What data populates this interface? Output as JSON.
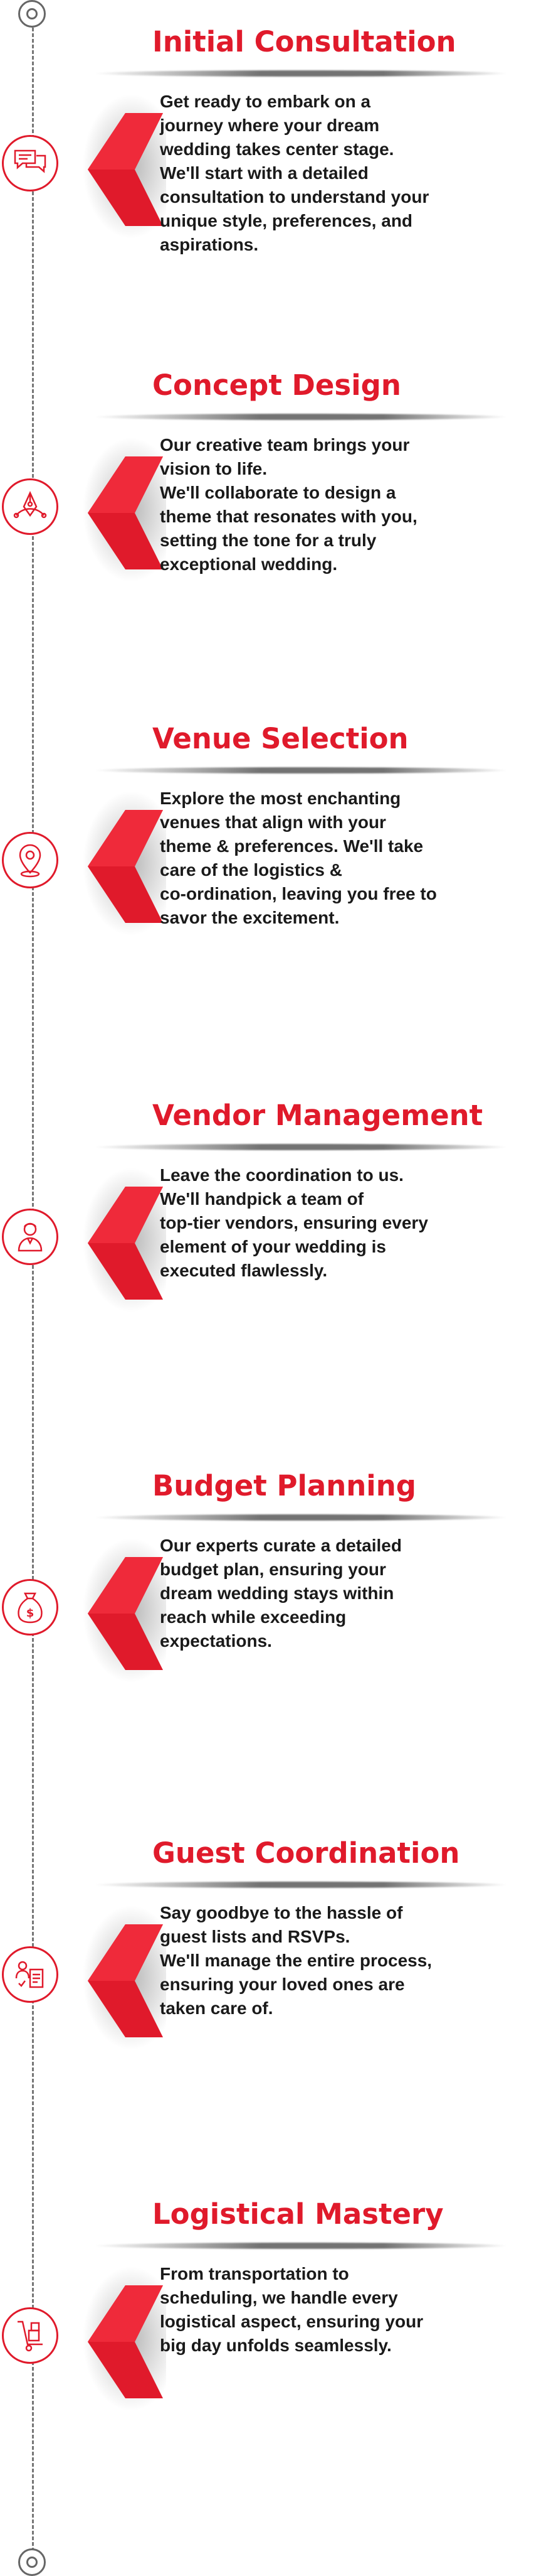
{
  "steps": [
    {
      "title": "Initial Consultation",
      "icon": "chat-icon",
      "body": "Get ready to embark on a\njourney where your dream\nwedding takes center stage.\nWe'll start with a detailed\nconsultation to understand your\nunique style, preferences, and\naspirations."
    },
    {
      "title": "Concept Design",
      "icon": "design-pen-icon",
      "body": "Our creative team brings your\nvision to life.\nWe'll collaborate to design a\ntheme that resonates with you,\nsetting the tone for a truly\nexceptional wedding."
    },
    {
      "title": "Venue Selection",
      "icon": "location-pin-icon",
      "body": "Explore the most enchanting\nvenues that align with your\ntheme & preferences. We'll take\ncare of the logistics &\nco-ordination, leaving you free to\nsavor the excitement."
    },
    {
      "title": "Vendor Management",
      "icon": "vendor-person-icon",
      "body": "Leave the coordination to us.\nWe'll handpick a team of\ntop-tier vendors, ensuring every\nelement of your wedding is\nexecuted flawlessly."
    },
    {
      "title": "Budget Planning",
      "icon": "money-bag-icon",
      "body": "Our experts curate a detailed\nbudget plan, ensuring your\ndream wedding stays within\nreach while exceeding\nexpectations."
    },
    {
      "title": "Guest Coordination",
      "icon": "guest-list-icon",
      "body": "Say goodbye to the hassle of\nguest lists and RSVPs.\nWe'll manage the entire process,\nensuring your loved ones are\ntaken care of."
    },
    {
      "title": "Logistical Mastery",
      "icon": "hand-truck-icon",
      "body": "From transportation to\nscheduling, we handle every\nlogistical aspect, ensuring your\nbig day unfolds seamlessly."
    }
  ],
  "colors": {
    "accent": "#e01a2b",
    "text": "#1a1a1a",
    "line": "#777777"
  }
}
